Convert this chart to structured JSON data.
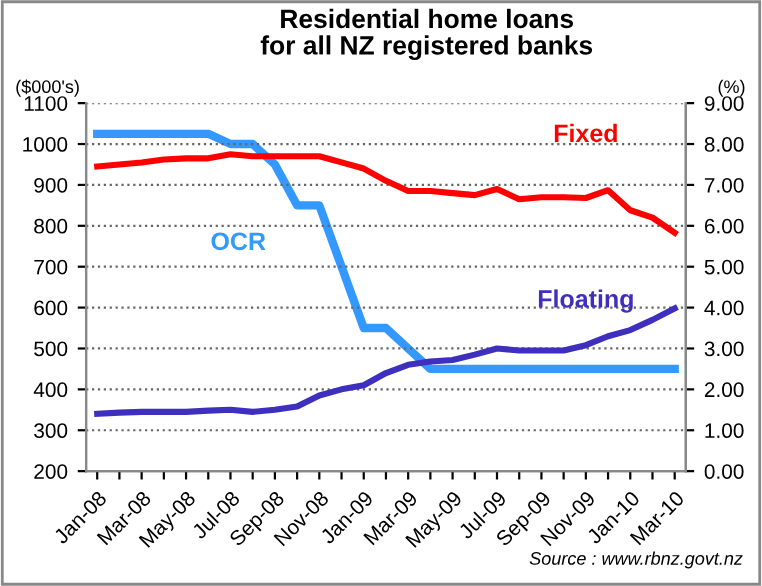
{
  "chart_data": {
    "type": "line",
    "title": "Residential home loans\nfor all NZ registered banks",
    "ylabel": "($000's)",
    "y2label": "(%)",
    "categories": [
      "Jan-08",
      null,
      "Mar-08",
      null,
      "May-08",
      null,
      "Jul-08",
      null,
      "Sep-08",
      null,
      "Nov-08",
      null,
      "Jan-09",
      null,
      "Mar-09",
      null,
      "May-09",
      null,
      "Jul-09",
      null,
      "Sep-09",
      null,
      "Nov-09",
      null,
      "Jan-10",
      null,
      "Mar-10"
    ],
    "series": [
      {
        "name": "Fixed",
        "color": "#ff0000",
        "values": [
          945,
          950,
          955,
          962,
          965,
          965,
          975,
          970,
          970,
          970,
          970,
          955,
          940,
          910,
          885,
          885,
          880,
          875,
          890,
          865,
          870,
          870,
          868,
          887,
          838,
          820,
          783
        ]
      },
      {
        "name": "OCR",
        "color": "#3399ff",
        "axis": "y2",
        "values": [
          8.25,
          8.25,
          8.25,
          8.25,
          8.25,
          8.25,
          8.0,
          8.0,
          7.5,
          6.5,
          6.5,
          5.0,
          3.5,
          3.5,
          3.0,
          2.5,
          2.5,
          2.5,
          2.5,
          2.5,
          2.5,
          2.5,
          2.5,
          2.5,
          2.5,
          2.5,
          2.5
        ]
      },
      {
        "name": "Floating",
        "color": "#3f2fbf",
        "values": [
          340,
          343,
          345,
          345,
          345,
          348,
          350,
          345,
          350,
          358,
          385,
          400,
          410,
          440,
          460,
          468,
          472,
          485,
          500,
          495,
          495,
          495,
          508,
          530,
          545,
          570,
          598
        ]
      }
    ],
    "ylim": [
      200,
      1100
    ],
    "yticks": [
      200,
      300,
      400,
      500,
      600,
      700,
      800,
      900,
      1000,
      1100
    ],
    "y2lim": [
      0,
      9
    ],
    "y2ticks": [
      {
        "value": 0,
        "label": "0.00"
      },
      {
        "value": 1,
        "label": "1.00"
      },
      {
        "value": 2,
        "label": "2.00"
      },
      {
        "value": 3,
        "label": "3.00"
      },
      {
        "value": 4,
        "label": "4.00"
      },
      {
        "value": 5,
        "label": "5.00"
      },
      {
        "value": 6,
        "label": "6.00"
      },
      {
        "value": 7,
        "label": "7.00"
      },
      {
        "value": 8,
        "label": "8.00"
      },
      {
        "value": 9,
        "label": "9.00"
      }
    ],
    "grid": "y",
    "legend": false,
    "annotations": [
      "Source : www.rbnz.govt.nz"
    ]
  }
}
